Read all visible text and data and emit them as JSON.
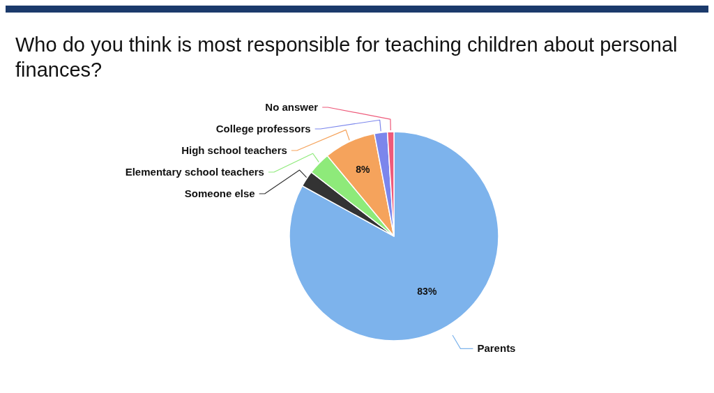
{
  "chart_data": {
    "type": "pie",
    "title": "Who do you think is most responsible for teaching children about personal finances?",
    "categories": [
      "Parents",
      "Someone else",
      "Elementary school teachers",
      "High school teachers",
      "College professors",
      "No answer"
    ],
    "values": [
      83,
      2.5,
      3.5,
      8,
      2,
      1
    ],
    "value_labels": [
      "83%",
      null,
      null,
      "8%",
      null,
      null
    ],
    "colors": [
      "#7db3ec",
      "#333333",
      "#8eea7a",
      "#f5a35c",
      "#7b86ec",
      "#ee5a7a"
    ]
  }
}
